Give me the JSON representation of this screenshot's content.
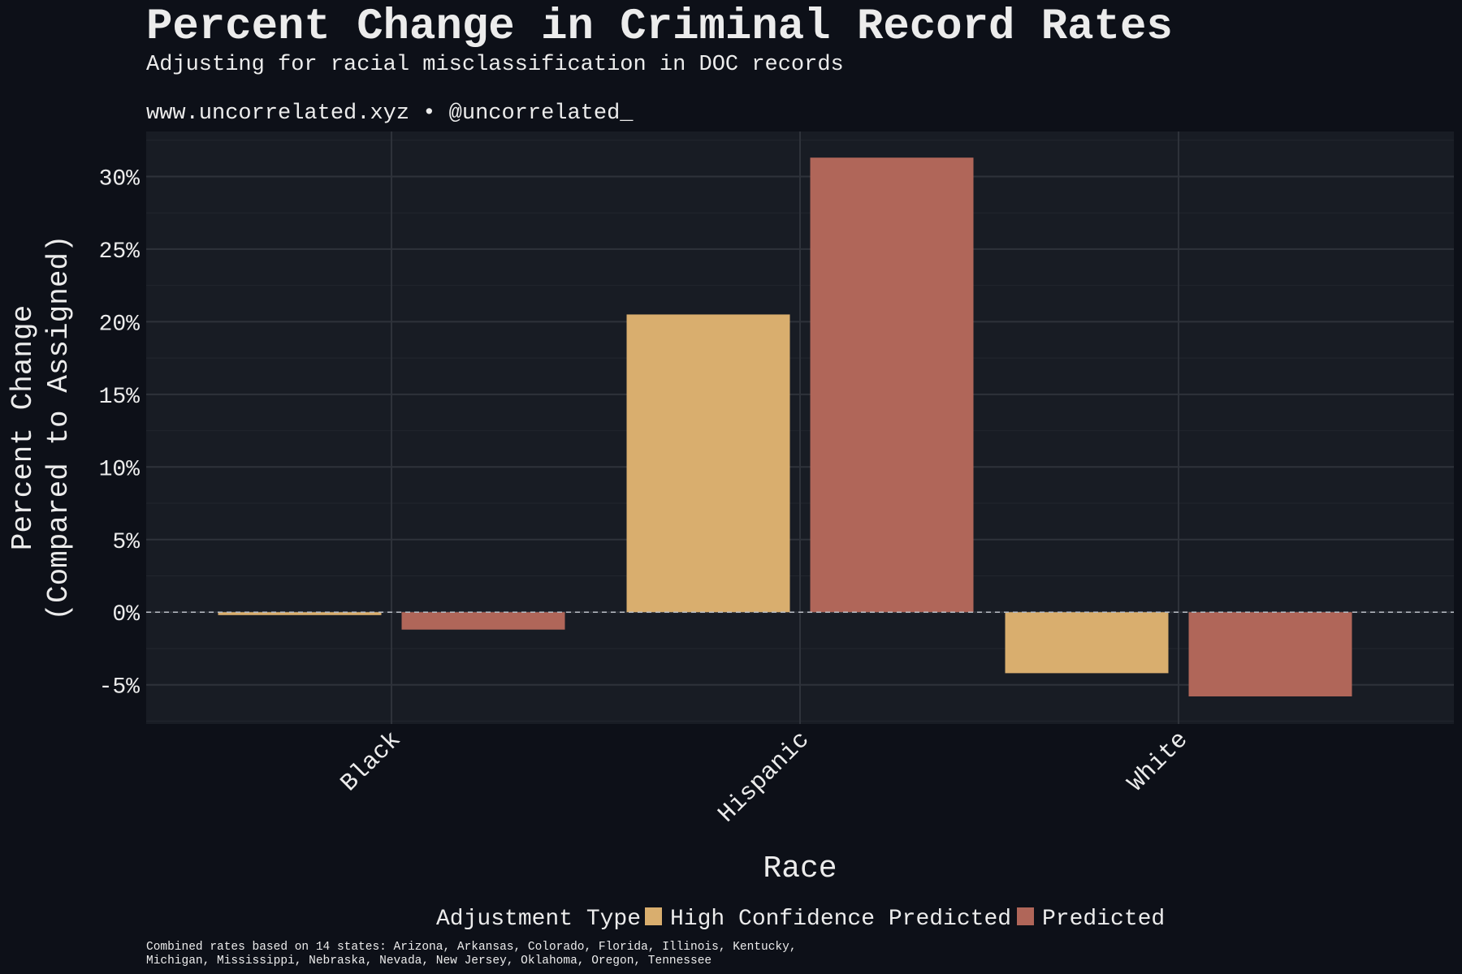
{
  "chart_data": {
    "type": "bar",
    "title": "Percent Change in Criminal Record Rates",
    "subtitle": "Adjusting for racial misclassification in DOC records",
    "source_line": "www.uncorrelated.xyz • @uncorrelated_",
    "xlabel": "Race",
    "ylabel": [
      "Percent Change",
      "(Compared to Assigned)"
    ],
    "categories": [
      "Black",
      "Hispanic",
      "White"
    ],
    "series": [
      {
        "name": "High Confidence Predicted",
        "color": "#d9ae6e",
        "values": [
          -0.2,
          20.5,
          -4.2
        ]
      },
      {
        "name": "Predicted",
        "color": "#b06659",
        "values": [
          -1.2,
          31.3,
          -5.8
        ]
      }
    ],
    "ylim": [
      -7.7,
      33.1
    ],
    "yticks": [
      -5,
      0,
      5,
      10,
      15,
      20,
      25,
      30
    ],
    "ytick_labels": [
      "-5%",
      "0%",
      "5%",
      "10%",
      "15%",
      "20%",
      "25%",
      "30%"
    ],
    "grid": true,
    "reference_line": 0,
    "legend": {
      "title": "Adjustment Type",
      "placement": "bottom"
    },
    "caption": [
      "Combined rates based on 14 states: Arizona, Arkansas, Colorado, Florida, Illinois, Kentucky,",
      "Michigan, Mississippi, Nebraska, Nevada, New Jersey, Oklahoma, Oregon, Tennessee"
    ],
    "colors": {
      "background": "#0d1018",
      "panel": "#181c24",
      "grid": "#2e323a"
    }
  }
}
